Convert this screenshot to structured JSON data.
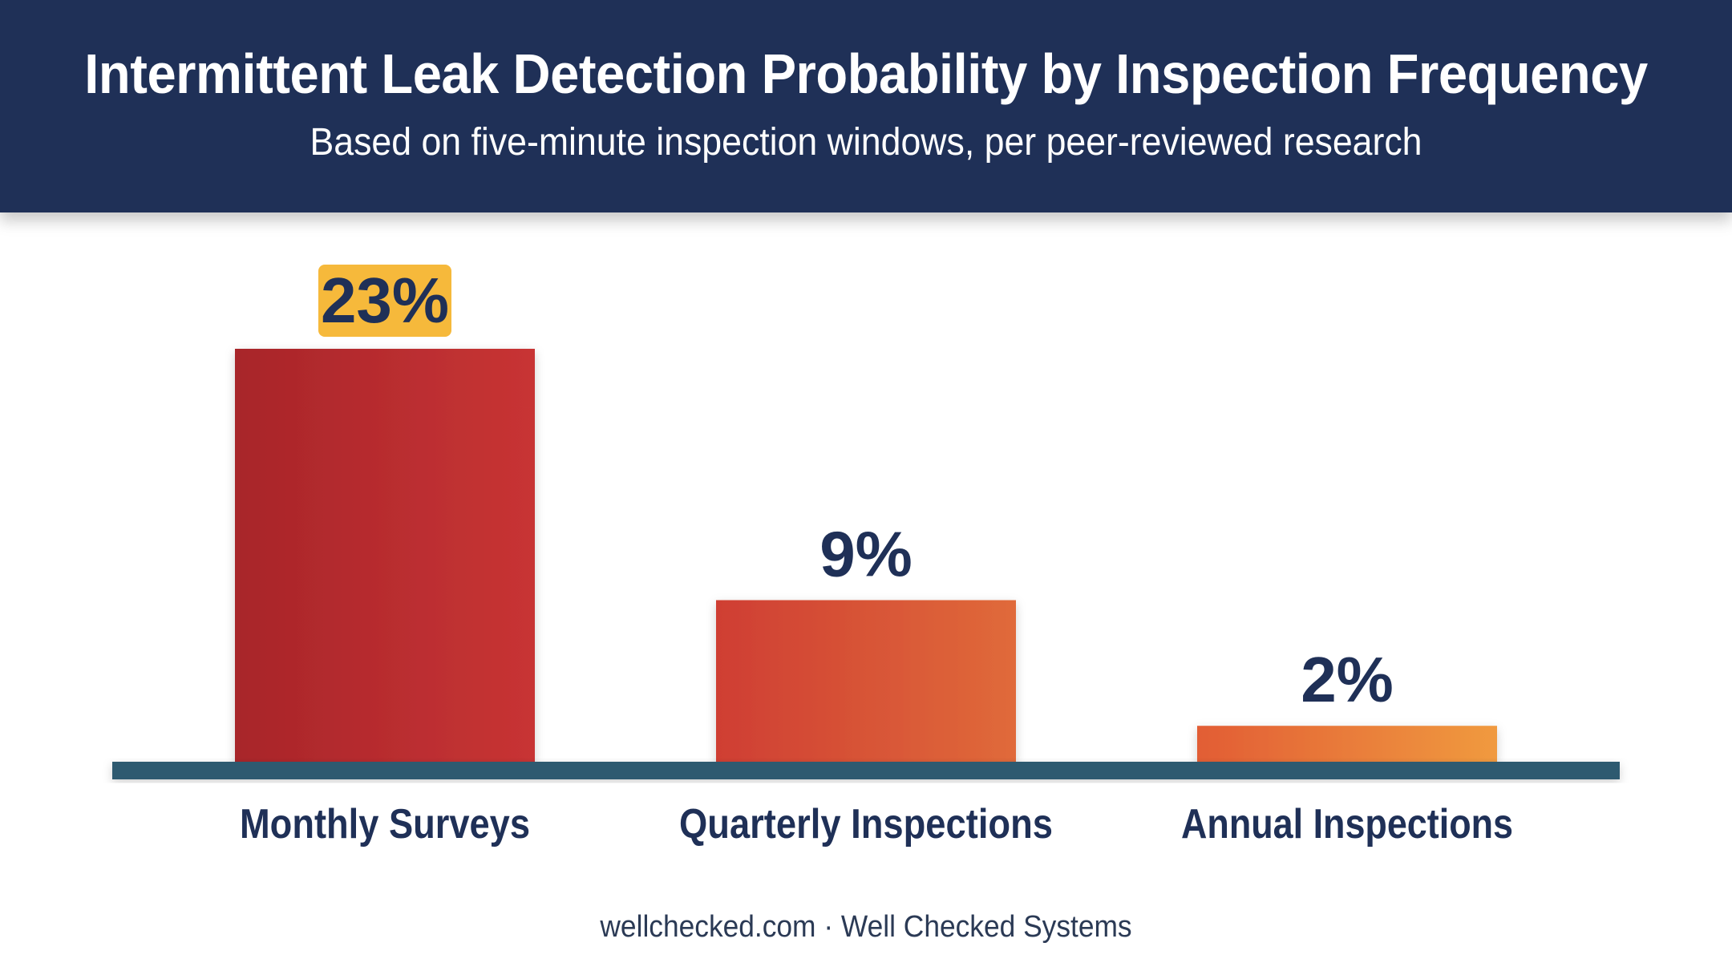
{
  "chart_data": {
    "type": "bar",
    "title": "Intermittent Leak Detection Probability by Inspection Frequency",
    "subtitle": "Based on five-minute inspection windows, per peer-reviewed research",
    "categories": [
      "Monthly Surveys",
      "Quarterly Inspections",
      "Annual Inspections"
    ],
    "values": [
      23,
      9,
      2
    ],
    "value_labels": [
      "23%",
      "9%",
      "2%"
    ],
    "ylim": [
      0,
      23
    ],
    "grid": false,
    "xlabel": "",
    "ylabel": "",
    "colors": {
      "header_bg": "#1f3057",
      "label_text": "#1f3057",
      "baseline": "#2e5a70",
      "highlight_badge": "#f6b93b",
      "bar_gradients": [
        [
          "#a8252a",
          "#c83434"
        ],
        [
          "#cf3e33",
          "#e06a3a"
        ],
        [
          "#e25d35",
          "#f09a3f"
        ]
      ]
    }
  },
  "footer": "wellchecked.com · Well Checked Systems"
}
